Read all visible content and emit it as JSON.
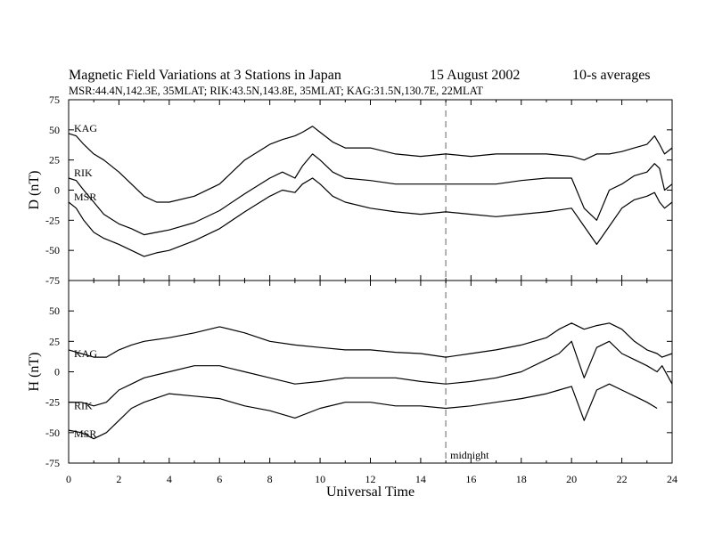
{
  "header": {
    "title": "Magnetic Field Variations at 3 Stations in Japan",
    "date": "15  August  2002",
    "averaging": "10-s averages",
    "stations_info": "MSR:44.4N,142.3E, 35MLAT;  RIK:43.5N,143.8E, 35MLAT;  KAG:31.5N,130.7E, 22MLAT"
  },
  "chart_data": [
    {
      "type": "line",
      "panel": "top",
      "ylabel": "D (nT)",
      "xlabel": "",
      "xlim": [
        0,
        24
      ],
      "ylim": [
        -75,
        75
      ],
      "yticks": [
        -75,
        -50,
        -25,
        0,
        25,
        50,
        75
      ],
      "ytick_labels": [
        "-75",
        "-50",
        "-25",
        "0",
        "25",
        "50",
        "75"
      ],
      "grid": false,
      "series": [
        {
          "name": "KAG",
          "x": [
            0,
            0.3,
            0.6,
            1.0,
            1.4,
            2.0,
            2.5,
            3.0,
            3.5,
            4.0,
            5.0,
            6.0,
            7.0,
            8.0,
            8.5,
            9.0,
            9.3,
            9.7,
            10.0,
            10.5,
            11.0,
            12.0,
            13.0,
            14.0,
            15.0,
            16.0,
            17.0,
            18.0,
            19.0,
            20.0,
            20.5,
            21.0,
            21.5,
            22.0,
            22.5,
            23.0,
            23.3,
            23.5,
            23.7,
            24.0
          ],
          "y": [
            47,
            45,
            38,
            30,
            25,
            15,
            5,
            -5,
            -10,
            -10,
            -5,
            5,
            25,
            38,
            42,
            45,
            48,
            53,
            48,
            40,
            35,
            35,
            30,
            28,
            30,
            28,
            30,
            30,
            30,
            28,
            25,
            30,
            30,
            32,
            35,
            38,
            45,
            38,
            30,
            35
          ]
        },
        {
          "name": "RIK",
          "x": [
            0,
            0.3,
            0.6,
            1.0,
            1.4,
            2.0,
            2.5,
            3.0,
            3.5,
            4.0,
            5.0,
            6.0,
            7.0,
            8.0,
            8.5,
            9.0,
            9.3,
            9.7,
            10.0,
            10.5,
            11.0,
            12.0,
            13.0,
            14.0,
            15.0,
            16.0,
            17.0,
            18.0,
            19.0,
            20.0,
            20.5,
            21.0,
            21.5,
            22.0,
            22.5,
            23.0,
            23.3,
            23.5,
            23.7,
            24.0
          ],
          "y": [
            10,
            8,
            0,
            -10,
            -20,
            -28,
            -32,
            -37,
            -35,
            -33,
            -27,
            -17,
            -3,
            10,
            15,
            10,
            20,
            30,
            25,
            15,
            10,
            8,
            5,
            5,
            5,
            5,
            5,
            8,
            10,
            10,
            -15,
            -25,
            0,
            5,
            12,
            15,
            22,
            18,
            0,
            5
          ]
        },
        {
          "name": "MSR",
          "x": [
            0,
            0.3,
            0.6,
            1.0,
            1.4,
            2.0,
            2.5,
            3.0,
            3.5,
            4.0,
            5.0,
            6.0,
            7.0,
            8.0,
            8.5,
            9.0,
            9.3,
            9.7,
            10.0,
            10.5,
            11.0,
            12.0,
            13.0,
            14.0,
            15.0,
            16.0,
            17.0,
            18.0,
            19.0,
            20.0,
            20.5,
            21.0,
            21.5,
            22.0,
            22.5,
            23.0,
            23.3,
            23.5,
            23.7,
            24.0
          ],
          "y": [
            -10,
            -15,
            -25,
            -35,
            -40,
            -45,
            -50,
            -55,
            -52,
            -50,
            -42,
            -32,
            -18,
            -5,
            0,
            -2,
            5,
            10,
            5,
            -5,
            -10,
            -15,
            -18,
            -20,
            -18,
            -20,
            -22,
            -20,
            -18,
            -15,
            -30,
            -45,
            -30,
            -15,
            -8,
            -5,
            -2,
            -10,
            -15,
            -10
          ]
        }
      ]
    },
    {
      "type": "line",
      "panel": "bottom",
      "ylabel": "H (nT)",
      "xlabel": "Universal Time",
      "xlim": [
        0,
        24
      ],
      "ylim": [
        -75,
        75
      ],
      "yticks": [
        -75,
        -50,
        -25,
        0,
        25,
        50
      ],
      "ytick_labels": [
        "-75",
        "-50",
        "-25",
        "0",
        "25",
        "50"
      ],
      "xticks": [
        0,
        2,
        4,
        6,
        8,
        10,
        12,
        14,
        16,
        18,
        20,
        22,
        24
      ],
      "xtick_labels": [
        "0",
        "2",
        "4",
        "6",
        "8",
        "10",
        "12",
        "14",
        "16",
        "18",
        "20",
        "22",
        "24"
      ],
      "grid": false,
      "annotations": [
        {
          "text": "midnight",
          "x": 15
        }
      ],
      "series": [
        {
          "name": "KAG",
          "x": [
            0,
            0.5,
            1.0,
            1.5,
            2.0,
            2.5,
            3.0,
            4.0,
            5.0,
            6.0,
            7.0,
            8.0,
            9.0,
            10.0,
            11.0,
            12.0,
            13.0,
            14.0,
            15.0,
            16.0,
            17.0,
            18.0,
            19.0,
            19.5,
            20.0,
            20.5,
            21.0,
            21.5,
            22.0,
            22.5,
            23.0,
            23.4,
            23.6,
            24.0
          ],
          "y": [
            18,
            15,
            12,
            12,
            18,
            22,
            25,
            28,
            32,
            37,
            32,
            25,
            22,
            20,
            18,
            18,
            16,
            15,
            12,
            15,
            18,
            22,
            28,
            35,
            40,
            35,
            38,
            40,
            35,
            25,
            18,
            15,
            12,
            15
          ]
        },
        {
          "name": "RIK",
          "x": [
            0,
            0.5,
            1.0,
            1.5,
            2.0,
            2.5,
            3.0,
            4.0,
            5.0,
            6.0,
            7.0,
            8.0,
            9.0,
            10.0,
            11.0,
            12.0,
            13.0,
            14.0,
            15.0,
            16.0,
            17.0,
            18.0,
            19.0,
            19.5,
            20.0,
            20.5,
            21.0,
            21.5,
            22.0,
            22.5,
            23.0,
            23.4,
            23.6,
            24.0
          ],
          "y": [
            -25,
            -25,
            -28,
            -25,
            -15,
            -10,
            -5,
            0,
            5,
            5,
            0,
            -5,
            -10,
            -8,
            -5,
            -5,
            -5,
            -8,
            -10,
            -8,
            -5,
            0,
            10,
            15,
            25,
            -5,
            20,
            25,
            15,
            10,
            5,
            0,
            5,
            -10
          ]
        },
        {
          "name": "MSR",
          "x": [
            0,
            0.5,
            1.0,
            1.5,
            2.0,
            2.5,
            3.0,
            4.0,
            5.0,
            6.0,
            7.0,
            8.0,
            9.0,
            10.0,
            11.0,
            12.0,
            13.0,
            14.0,
            15.0,
            16.0,
            17.0,
            18.0,
            19.0,
            19.5,
            20.0,
            20.5,
            21.0,
            21.5,
            22.0,
            22.5,
            23.0,
            23.4
          ],
          "y": [
            -48,
            -50,
            -55,
            -50,
            -40,
            -30,
            -25,
            -18,
            -20,
            -22,
            -28,
            -32,
            -38,
            -30,
            -25,
            -25,
            -28,
            -28,
            -30,
            -28,
            -25,
            -22,
            -18,
            -15,
            -12,
            -40,
            -15,
            -10,
            -15,
            -20,
            -25,
            -30
          ]
        }
      ]
    }
  ]
}
